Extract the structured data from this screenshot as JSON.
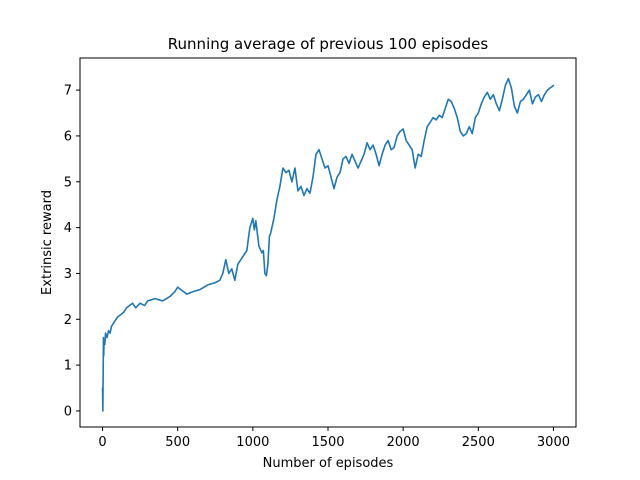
{
  "chart_data": {
    "type": "line",
    "title": "Running average of previous 100 episodes",
    "xlabel": "Number of episodes",
    "ylabel": "Extrinsic reward",
    "xlim": [
      -150,
      3150
    ],
    "ylim": [
      -0.35,
      7.7
    ],
    "xticks": [
      0,
      500,
      1000,
      1500,
      2000,
      2500,
      3000
    ],
    "yticks": [
      0,
      1,
      2,
      3,
      4,
      5,
      6,
      7
    ],
    "grid": false,
    "legend": "none",
    "series": [
      {
        "color": "#1f77b4",
        "x": [
          0,
          2,
          4,
          6,
          8,
          10,
          15,
          20,
          30,
          40,
          50,
          60,
          80,
          100,
          120,
          140,
          160,
          180,
          200,
          220,
          250,
          280,
          300,
          350,
          400,
          450,
          480,
          500,
          520,
          540,
          560,
          600,
          650,
          700,
          750,
          780,
          800,
          820,
          840,
          860,
          880,
          900,
          920,
          940,
          960,
          980,
          1000,
          1010,
          1020,
          1040,
          1060,
          1070,
          1080,
          1090,
          1100,
          1110,
          1120,
          1140,
          1160,
          1180,
          1200,
          1220,
          1240,
          1260,
          1280,
          1300,
          1320,
          1340,
          1360,
          1380,
          1400,
          1420,
          1440,
          1460,
          1480,
          1500,
          1520,
          1540,
          1560,
          1580,
          1600,
          1620,
          1640,
          1660,
          1680,
          1700,
          1720,
          1740,
          1760,
          1780,
          1800,
          1820,
          1840,
          1860,
          1880,
          1900,
          1920,
          1940,
          1960,
          1980,
          2000,
          2020,
          2040,
          2060,
          2080,
          2100,
          2120,
          2140,
          2160,
          2180,
          2200,
          2220,
          2240,
          2260,
          2280,
          2300,
          2320,
          2340,
          2360,
          2380,
          2400,
          2420,
          2440,
          2460,
          2480,
          2500,
          2520,
          2540,
          2560,
          2580,
          2600,
          2620,
          2640,
          2660,
          2680,
          2700,
          2720,
          2740,
          2760,
          2780,
          2800,
          2820,
          2840,
          2860,
          2880,
          2900,
          2920,
          2940,
          2960,
          2980,
          3000
        ],
        "y": [
          0.5,
          0.0,
          0.8,
          1.6,
          1.2,
          1.55,
          1.45,
          1.7,
          1.6,
          1.75,
          1.7,
          1.85,
          1.95,
          2.05,
          2.1,
          2.15,
          2.25,
          2.3,
          2.35,
          2.25,
          2.35,
          2.3,
          2.4,
          2.45,
          2.4,
          2.5,
          2.6,
          2.7,
          2.65,
          2.6,
          2.55,
          2.6,
          2.65,
          2.75,
          2.8,
          2.85,
          3.0,
          3.3,
          3.0,
          3.1,
          2.85,
          3.2,
          3.3,
          3.4,
          3.5,
          4.0,
          4.2,
          3.95,
          4.15,
          3.6,
          3.45,
          3.5,
          3.0,
          2.95,
          3.2,
          3.8,
          3.9,
          4.2,
          4.6,
          4.9,
          5.3,
          5.2,
          5.25,
          5.0,
          5.3,
          4.8,
          4.9,
          4.7,
          4.85,
          4.75,
          5.1,
          5.6,
          5.7,
          5.5,
          5.3,
          5.35,
          5.1,
          4.85,
          5.1,
          5.2,
          5.5,
          5.55,
          5.4,
          5.6,
          5.45,
          5.3,
          5.45,
          5.6,
          5.85,
          5.7,
          5.8,
          5.6,
          5.35,
          5.6,
          5.8,
          5.9,
          5.7,
          5.75,
          6.0,
          6.1,
          6.15,
          5.9,
          5.8,
          5.7,
          5.3,
          5.6,
          5.55,
          5.9,
          6.2,
          6.3,
          6.4,
          6.35,
          6.45,
          6.4,
          6.6,
          6.8,
          6.75,
          6.6,
          6.4,
          6.1,
          6.0,
          6.05,
          6.2,
          6.05,
          6.4,
          6.5,
          6.7,
          6.85,
          6.95,
          6.8,
          6.9,
          6.7,
          6.55,
          6.8,
          7.1,
          7.25,
          7.05,
          6.65,
          6.5,
          6.75,
          6.8,
          6.9,
          7.0,
          6.7,
          6.85,
          6.9,
          6.75,
          6.9,
          7.0,
          7.05,
          7.1
        ]
      }
    ]
  }
}
